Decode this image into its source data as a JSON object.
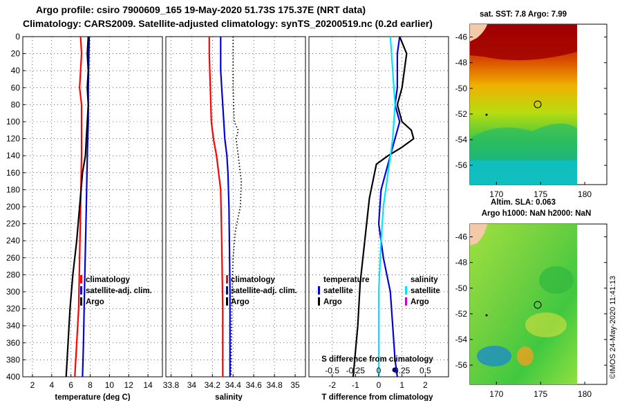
{
  "header": {
    "title_line1": "Argo profile: csiro 7900609_165 19-May-2020 51.73S 175.37E (NRT data)",
    "title_line2": "Climatology: CARS2009. Satellite-adjusted climatology: synTS_20200519.nc (0.2d earlier)"
  },
  "colors": {
    "climatology": "#ff0000",
    "satellite": "#0000dd",
    "argo": "#000000",
    "salinity_sat": "#00e5ff",
    "salinity_argo": "#cc00cc"
  },
  "chart_data": [
    {
      "type": "line",
      "panel": "temperature",
      "xlabel": "temperature (deg C)",
      "ylabel": "",
      "xlim": [
        1,
        15.5
      ],
      "ylim": [
        400,
        0
      ],
      "xticks": [
        "2",
        "4",
        "6",
        "8",
        "10",
        "12",
        "14"
      ],
      "xtick_values": [
        2,
        4,
        6,
        8,
        10,
        12,
        14
      ],
      "yticks": [
        "0",
        "20",
        "40",
        "60",
        "80",
        "100",
        "120",
        "140",
        "160",
        "180",
        "200",
        "220",
        "240",
        "260",
        "280",
        "300",
        "320",
        "340",
        "360",
        "380",
        "400"
      ],
      "grid": true,
      "legend": [
        "climatology",
        "satellite-adj. clim.",
        "Argo"
      ],
      "series": [
        {
          "name": "climatology",
          "color": "#ff0000",
          "points": [
            [
              7.0,
              0
            ],
            [
              7.1,
              20
            ],
            [
              6.9,
              60
            ],
            [
              7.1,
              80
            ],
            [
              7.1,
              140
            ],
            [
              7.0,
              200
            ],
            [
              6.9,
              260
            ],
            [
              6.8,
              320
            ],
            [
              6.6,
              360
            ],
            [
              6.4,
              400
            ]
          ]
        },
        {
          "name": "satellite-adj. clim.",
          "color": "#0000dd",
          "points": [
            [
              7.9,
              0
            ],
            [
              7.8,
              60
            ],
            [
              7.8,
              100
            ],
            [
              7.7,
              140
            ],
            [
              7.6,
              200
            ],
            [
              7.4,
              300
            ],
            [
              7.3,
              360
            ],
            [
              7.2,
              400
            ]
          ]
        },
        {
          "name": "Argo",
          "color": "#000000",
          "points": [
            [
              7.8,
              0
            ],
            [
              7.7,
              20
            ],
            [
              7.8,
              40
            ],
            [
              7.7,
              60
            ],
            [
              7.8,
              80
            ],
            [
              7.7,
              100
            ],
            [
              7.6,
              120
            ],
            [
              7.5,
              140
            ],
            [
              7.2,
              160
            ],
            [
              6.9,
              200
            ],
            [
              6.6,
              240
            ],
            [
              6.2,
              280
            ],
            [
              5.9,
              320
            ],
            [
              5.7,
              360
            ],
            [
              5.6,
              380
            ],
            [
              5.5,
              400
            ]
          ]
        }
      ]
    },
    {
      "type": "line",
      "panel": "salinity",
      "xlabel": "salinity",
      "ylabel": "",
      "xlim": [
        33.75,
        35.1
      ],
      "ylim": [
        400,
        0
      ],
      "xticks": [
        "33.8",
        "34",
        "34.2",
        "34.4",
        "34.6",
        "34.8",
        "35"
      ],
      "xtick_values": [
        33.8,
        34.0,
        34.2,
        34.4,
        34.6,
        34.8,
        35.0
      ],
      "grid": true,
      "legend": [
        "climatology",
        "satellite-adj. clim.",
        "Argo"
      ],
      "series": [
        {
          "name": "climatology",
          "color": "#ff0000",
          "points": [
            [
              34.17,
              0
            ],
            [
              34.17,
              20
            ],
            [
              34.18,
              60
            ],
            [
              34.19,
              100
            ],
            [
              34.21,
              120
            ],
            [
              34.24,
              140
            ],
            [
              34.26,
              160
            ],
            [
              34.28,
              180
            ],
            [
              34.29,
              240
            ],
            [
              34.3,
              320
            ],
            [
              34.3,
              400
            ]
          ]
        },
        {
          "name": "satellite-adj. clim.",
          "color": "#0000dd",
          "points": [
            [
              34.28,
              0
            ],
            [
              34.28,
              40
            ],
            [
              34.29,
              60
            ],
            [
              34.3,
              80
            ],
            [
              34.31,
              100
            ],
            [
              34.32,
              120
            ],
            [
              34.34,
              140
            ],
            [
              34.35,
              160
            ],
            [
              34.36,
              200
            ],
            [
              34.37,
              300
            ],
            [
              34.37,
              400
            ]
          ]
        },
        {
          "name": "Argo",
          "color": "#000000",
          "style": "dotted",
          "points": [
            [
              34.4,
              0
            ],
            [
              34.4,
              60
            ],
            [
              34.41,
              100
            ],
            [
              34.45,
              110
            ],
            [
              34.43,
              120
            ],
            [
              34.44,
              130
            ],
            [
              34.46,
              150
            ],
            [
              34.48,
              170
            ],
            [
              34.47,
              200
            ],
            [
              34.42,
              230
            ],
            [
              34.4,
              260
            ],
            [
              34.39,
              300
            ],
            [
              34.38,
              400
            ]
          ]
        }
      ]
    },
    {
      "type": "line",
      "panel": "difference",
      "xlabel": "T difference from climatology",
      "top_axis_label": "S difference from climatology",
      "ylabel": "",
      "xlim": [
        -3,
        3
      ],
      "ylim": [
        400,
        0
      ],
      "xticks": [
        "-2",
        "-1",
        "0",
        "1",
        "2"
      ],
      "xtick_values": [
        -2,
        -1,
        0,
        1,
        2
      ],
      "sticks": [
        "-0.5",
        "-0.25",
        "0",
        "0.25",
        "0.5"
      ],
      "stick_values": [
        -2,
        -1,
        0,
        1,
        2
      ],
      "grid": true,
      "legend_headers": [
        "temperature",
        "salinity"
      ],
      "legend": [
        "satellite",
        "Argo",
        "satellite",
        "Argo"
      ],
      "series": [
        {
          "name": "T satellite",
          "color": "#0000dd",
          "points": [
            [
              0.9,
              0
            ],
            [
              0.8,
              20
            ],
            [
              0.8,
              60
            ],
            [
              0.7,
              80
            ],
            [
              0.9,
              100
            ],
            [
              0.5,
              140
            ],
            [
              0.1,
              180
            ],
            [
              0.0,
              220
            ],
            [
              0.2,
              260
            ],
            [
              0.5,
              300
            ],
            [
              0.6,
              340
            ],
            [
              0.7,
              380
            ],
            [
              0.8,
              400
            ]
          ]
        },
        {
          "name": "T Argo",
          "color": "#000000",
          "points": [
            [
              0.9,
              0
            ],
            [
              1.2,
              20
            ],
            [
              1.1,
              40
            ],
            [
              1.0,
              60
            ],
            [
              0.8,
              80
            ],
            [
              1.0,
              100
            ],
            [
              1.4,
              110
            ],
            [
              1.5,
              120
            ],
            [
              1.0,
              130
            ],
            [
              0.4,
              140
            ],
            [
              -0.1,
              150
            ],
            [
              -0.4,
              190
            ],
            [
              -0.6,
              240
            ],
            [
              -0.8,
              290
            ],
            [
              -0.9,
              340
            ],
            [
              -1.1,
              400
            ]
          ]
        },
        {
          "name": "S satellite",
          "color": "#00e5ff",
          "points": [
            [
              0.5,
              0
            ],
            [
              0.6,
              40
            ],
            [
              0.7,
              80
            ],
            [
              0.6,
              120
            ],
            [
              0.4,
              160
            ],
            [
              0.2,
              200
            ],
            [
              0.1,
              240
            ],
            [
              0.0,
              300
            ],
            [
              0.0,
              400
            ]
          ]
        }
      ]
    }
  ],
  "maps": {
    "top": {
      "title": "sat. SST: 7.8 Argo: 7.99",
      "xticks": [
        "170",
        "175",
        "180"
      ],
      "yticks": [
        "-46",
        "-48",
        "-50",
        "-52",
        "-54",
        "-56"
      ]
    },
    "bottom": {
      "title1": "Altim. SLA: 0.063",
      "title2": "Argo h1000: NaN h2000: NaN",
      "xticks": [
        "170",
        "175",
        "180"
      ],
      "yticks": [
        "-46",
        "-48",
        "-50",
        "-52",
        "-54",
        "-56"
      ]
    }
  },
  "watermark": "©IMOS 24-May-2020 11:41:13"
}
